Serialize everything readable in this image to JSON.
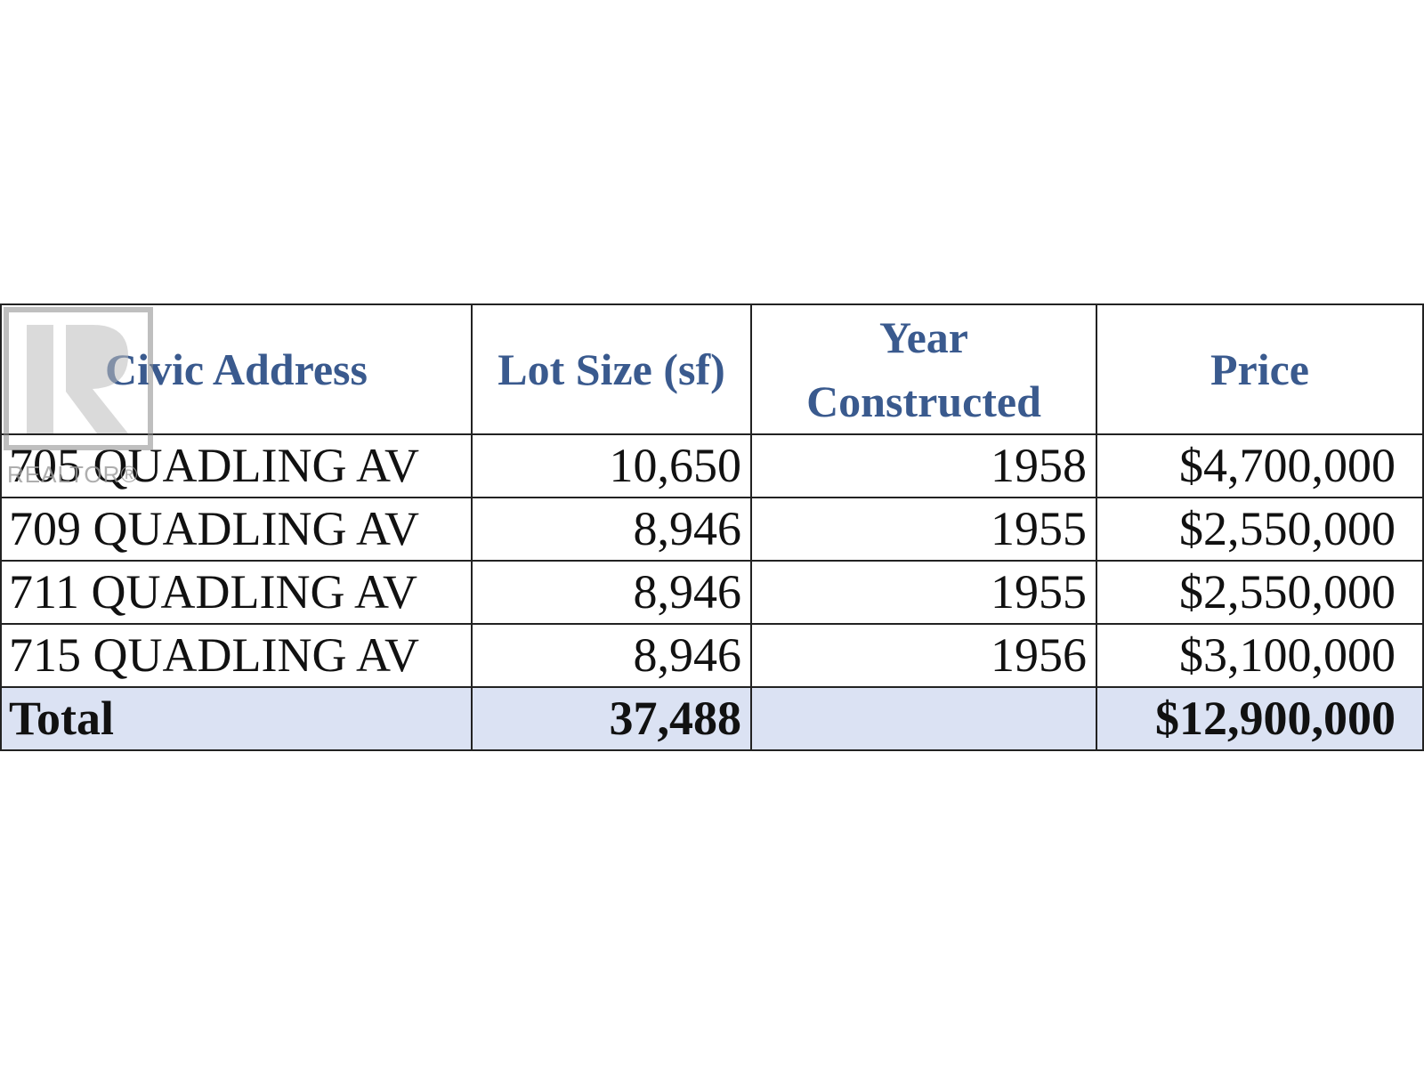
{
  "table": {
    "headers": [
      "Civic Address",
      "Lot Size (sf)",
      "Year Constructed",
      "Price"
    ],
    "rows": [
      {
        "address": "705 QUADLING AV",
        "lot_size": "10,650",
        "year": "1958",
        "price": "$4,700,000"
      },
      {
        "address": "709 QUADLING AV",
        "lot_size": "8,946",
        "year": "1955",
        "price": "$2,550,000"
      },
      {
        "address": "711 QUADLING AV",
        "lot_size": "8,946",
        "year": "1955",
        "price": "$2,550,000"
      },
      {
        "address": "715 QUADLING AV",
        "lot_size": "8,946",
        "year": "1956",
        "price": "$3,100,000"
      }
    ],
    "total": {
      "label": "Total",
      "lot_size": "37,488",
      "year": "",
      "price": "$12,900,000"
    }
  },
  "watermark": {
    "text": "REALTOR®"
  },
  "colors": {
    "header_text": "#3a5a8e",
    "total_row_bg": "#dbe2f3"
  }
}
